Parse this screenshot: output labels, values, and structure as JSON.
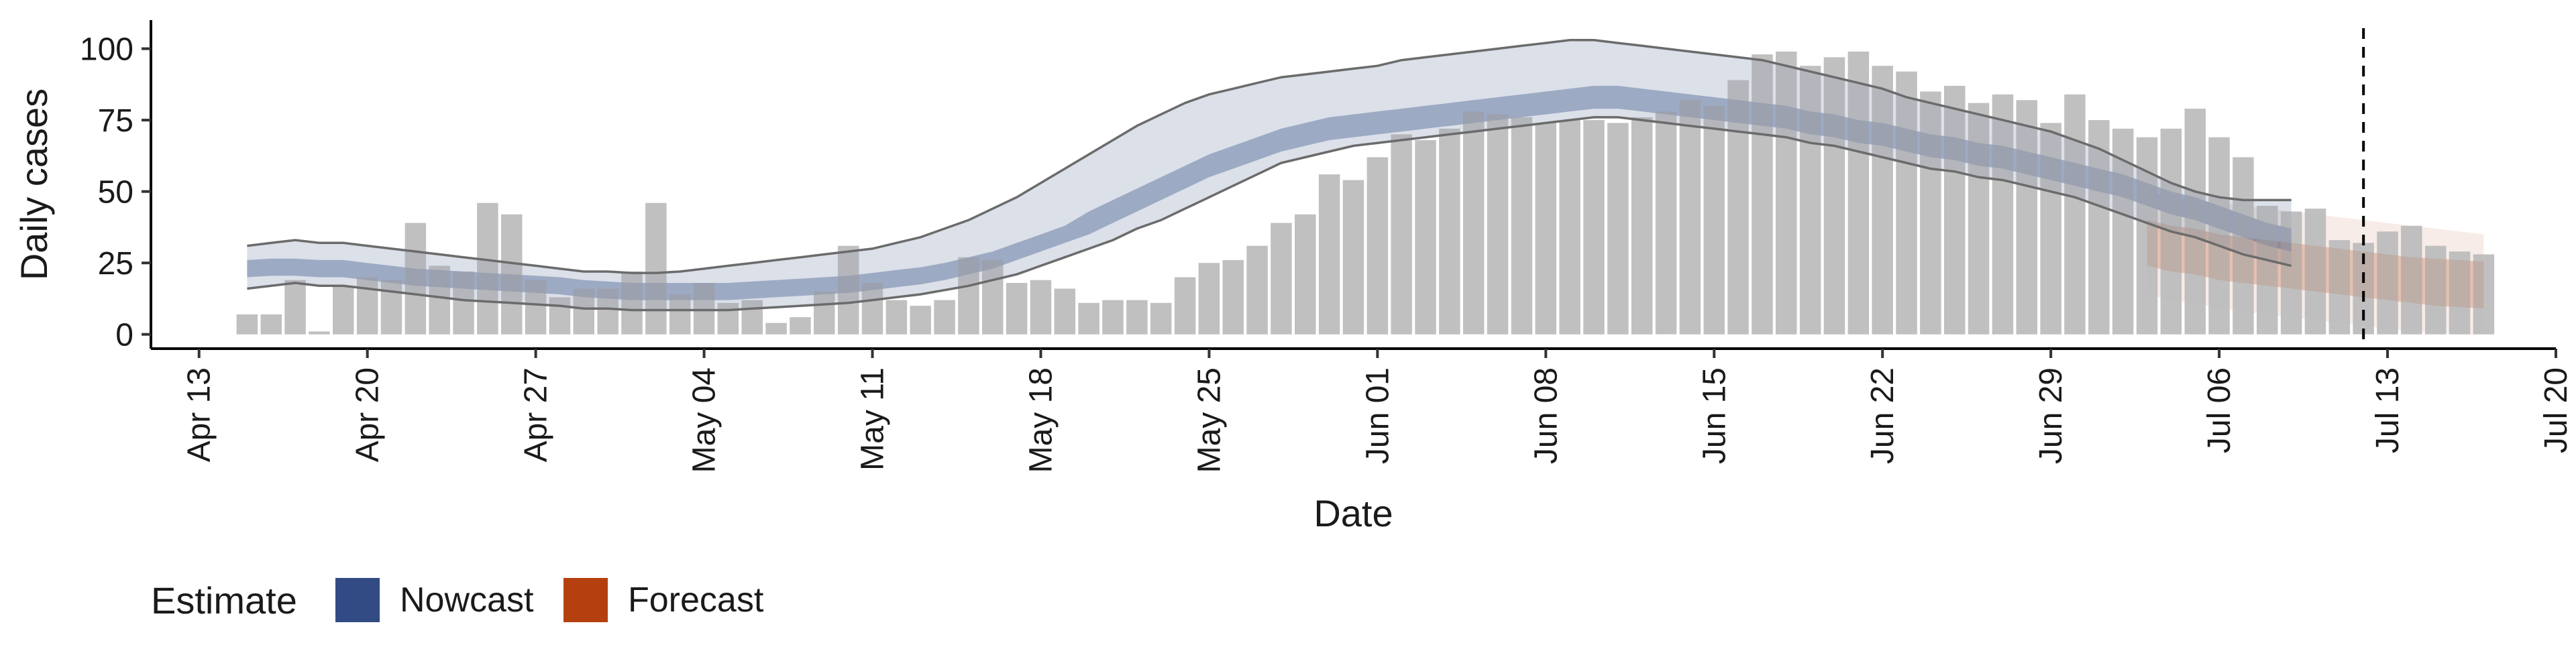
{
  "chart_data": {
    "type": "bar",
    "xlabel": "Date",
    "ylabel": "Daily cases",
    "xlim": [
      "2020-04-11",
      "2020-07-20"
    ],
    "ylim": [
      -5,
      110
    ],
    "x_ticks": [
      "Apr 13",
      "Apr 20",
      "Apr 27",
      "May 04",
      "May 11",
      "May 18",
      "May 25",
      "Jun 01",
      "Jun 08",
      "Jun 15",
      "Jun 22",
      "Jun 29",
      "Jul 06",
      "Jul 13",
      "Jul 20"
    ],
    "x_tick_dates": [
      "2020-04-13",
      "2020-04-20",
      "2020-04-27",
      "2020-05-04",
      "2020-05-11",
      "2020-05-18",
      "2020-05-25",
      "2020-06-01",
      "2020-06-08",
      "2020-06-15",
      "2020-06-22",
      "2020-06-29",
      "2020-07-06",
      "2020-07-13",
      "2020-07-20"
    ],
    "y_ticks": [
      0,
      25,
      50,
      75,
      100
    ],
    "grid": false,
    "legend_position": "bottom-left",
    "legend": {
      "title": "Estimate",
      "items": [
        {
          "label": "Nowcast",
          "color": "#324b84"
        },
        {
          "label": "Forecast",
          "color": "#b5400f"
        }
      ]
    },
    "colors": {
      "bars": "#bdbdbd",
      "nowcast": "#324b84",
      "forecast": "#b5400f",
      "outer_lines": "#6b6b6b"
    },
    "vline_date": "2020-07-12",
    "bars": {
      "start_date": "2020-04-15",
      "values": [
        7,
        7,
        19,
        1,
        17,
        20,
        19,
        39,
        24,
        22,
        46,
        42,
        19,
        13,
        16,
        16,
        22,
        46,
        14,
        18,
        11,
        12,
        4,
        6,
        15,
        31,
        18,
        12,
        10,
        12,
        27,
        26,
        18,
        19,
        16,
        11,
        12,
        12,
        11,
        20,
        25,
        26,
        31,
        39,
        42,
        56,
        54,
        62,
        70,
        68,
        72,
        78,
        77,
        76,
        74,
        75,
        75,
        74,
        76,
        78,
        82,
        80,
        89,
        98,
        99,
        94,
        97,
        99,
        94,
        92,
        85,
        87,
        81,
        84,
        82,
        74,
        84,
        75,
        72,
        69,
        72,
        79,
        69,
        62,
        45,
        43,
        44,
        33,
        32,
        36,
        38,
        31,
        29,
        28
      ]
    },
    "nowcast": {
      "start_date": "2020-04-15",
      "mid": [
        23,
        23.5,
        23.5,
        23,
        23,
        22,
        21,
        20,
        19.5,
        19,
        18.5,
        18,
        17.5,
        17,
        16,
        15.5,
        15,
        15,
        15,
        15,
        15,
        15.5,
        16,
        16.5,
        17,
        17.5,
        18.5,
        19.5,
        20.5,
        22,
        24,
        26,
        29,
        32,
        35,
        39,
        43,
        47,
        51,
        55,
        59,
        62,
        65,
        68,
        70,
        72,
        73,
        74,
        75,
        76,
        77,
        78,
        79,
        80,
        81,
        82,
        83,
        83,
        82,
        81,
        80,
        79,
        78,
        77,
        76,
        74,
        73,
        71,
        70,
        68,
        66,
        65,
        63,
        62,
        60,
        58,
        56,
        54,
        52,
        49,
        46,
        44,
        41,
        38,
        35,
        33
      ],
      "inner_lo": [
        20,
        20.5,
        20.5,
        20,
        20,
        19,
        18,
        17,
        16.5,
        16,
        15.5,
        15,
        14.5,
        14,
        13,
        12.5,
        12,
        12,
        12,
        12,
        12,
        12.5,
        13,
        13.5,
        14,
        14.5,
        15.5,
        16.5,
        17.5,
        19,
        21,
        23,
        26,
        29,
        32,
        35,
        39,
        43,
        47,
        51,
        55,
        58,
        61,
        64,
        66,
        68,
        69,
        70,
        71,
        72,
        73,
        74,
        75,
        76,
        77,
        78,
        79,
        79,
        78,
        77,
        76,
        75,
        74,
        73,
        72,
        70,
        69,
        67,
        66,
        64,
        62,
        61,
        59,
        58,
        56,
        54,
        52,
        50,
        48,
        45,
        42,
        40,
        37,
        34,
        31,
        29
      ],
      "inner_hi": [
        26,
        26.5,
        26.5,
        26,
        26,
        25,
        24,
        23,
        22.5,
        22,
        21.5,
        21,
        20.5,
        20,
        19,
        18.5,
        18,
        18,
        18,
        18,
        18,
        18.5,
        19,
        19.5,
        20,
        20.5,
        21.5,
        22.5,
        23.5,
        25,
        27,
        29,
        32,
        35,
        38,
        43,
        47,
        51,
        55,
        59,
        63,
        66,
        69,
        72,
        74,
        76,
        77,
        78,
        79,
        80,
        81,
        82,
        83,
        84,
        85,
        86,
        87,
        87,
        86,
        85,
        84,
        83,
        82,
        81,
        80,
        78,
        77,
        75,
        74,
        72,
        70,
        69,
        67,
        66,
        64,
        62,
        60,
        58,
        56,
        53,
        50,
        48,
        45,
        42,
        39,
        37
      ],
      "outer_lo": [
        16,
        17,
        18,
        17,
        17,
        16,
        15,
        14,
        13,
        12,
        11.5,
        11,
        10.5,
        10,
        9,
        9,
        8.5,
        8.5,
        8.5,
        8.5,
        8.5,
        9,
        9.5,
        10,
        10.5,
        11,
        12,
        13,
        14,
        15.5,
        17,
        19,
        21,
        24,
        27,
        30,
        33,
        37,
        40,
        44,
        48,
        52,
        56,
        60,
        62,
        64,
        66,
        67,
        68,
        69,
        70,
        71,
        72,
        73,
        74,
        75,
        76,
        76,
        75,
        74,
        73,
        72,
        71,
        70,
        69,
        67,
        66,
        64,
        62,
        60,
        58,
        57,
        55,
        54,
        52,
        50,
        48,
        45,
        42,
        39,
        36,
        34,
        31,
        28,
        26,
        24
      ],
      "outer_hi": [
        31,
        32,
        33,
        32,
        32,
        31,
        30,
        29,
        28,
        27,
        26,
        25,
        24,
        23,
        22,
        22,
        21.5,
        21.5,
        22,
        23,
        24,
        25,
        26,
        27,
        28,
        29,
        30,
        32,
        34,
        37,
        40,
        44,
        48,
        53,
        58,
        63,
        68,
        73,
        77,
        81,
        84,
        86,
        88,
        90,
        91,
        92,
        93,
        94,
        96,
        97,
        98,
        99,
        100,
        101,
        102,
        103,
        103,
        102,
        101,
        100,
        99,
        98,
        97,
        96,
        94,
        92,
        90,
        88,
        86,
        83,
        81,
        79,
        77,
        75,
        73,
        71,
        68,
        65,
        61,
        57,
        53,
        50,
        48,
        47,
        47,
        47
      ]
    },
    "forecast": {
      "start_date": "2020-07-03",
      "mid": [
        32,
        30,
        29,
        27,
        26,
        25,
        24,
        23,
        22,
        21,
        20,
        19,
        18.5,
        18,
        17.5
      ],
      "inner_lo": [
        24,
        22,
        21,
        19,
        18,
        17,
        16,
        15,
        14,
        13,
        12,
        11,
        10,
        9.5,
        9
      ],
      "inner_hi": [
        40,
        38,
        37,
        35,
        34,
        33,
        32,
        31,
        30,
        29,
        28,
        27,
        26.5,
        26,
        25.5
      ],
      "outer_lo": [
        14,
        12,
        11,
        9,
        8,
        7,
        6,
        5,
        4,
        3,
        2,
        1,
        0.5,
        0,
        0
      ],
      "outer_hi": [
        50,
        48,
        47,
        46,
        45,
        44,
        43,
        42,
        41,
        40,
        39,
        38,
        37,
        36,
        35
      ]
    }
  }
}
